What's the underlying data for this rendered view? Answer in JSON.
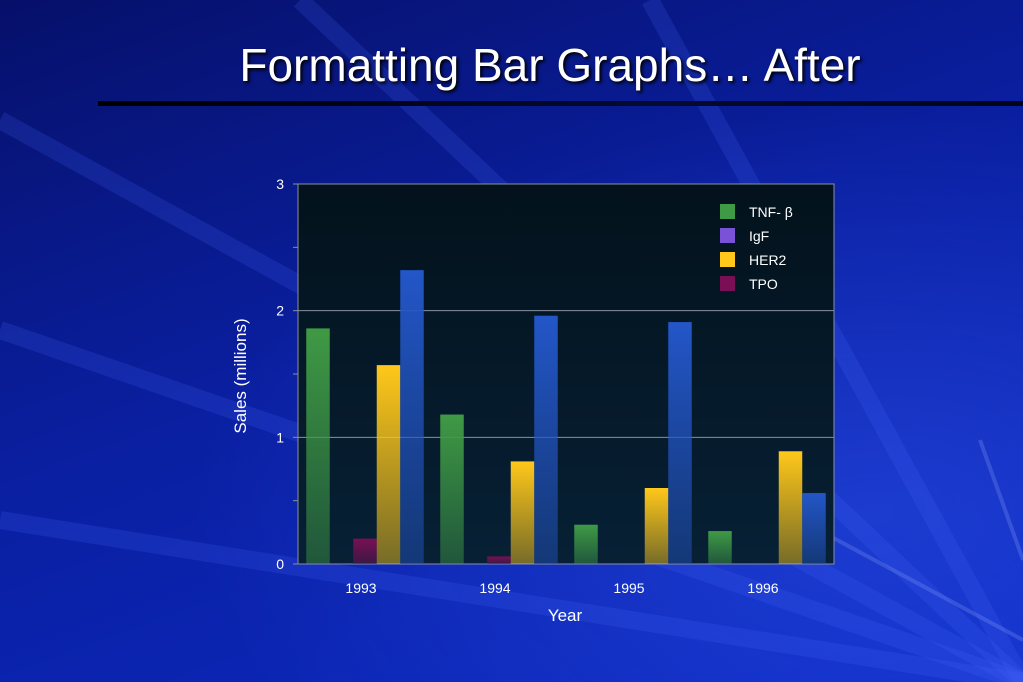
{
  "slide": {
    "title": "Formatting Bar Graphs… After"
  },
  "chart_data": {
    "type": "bar",
    "categories": [
      "1993",
      "1994",
      "1995",
      "1996"
    ],
    "series": [
      {
        "name": "TNF- β",
        "values": [
          1.86,
          1.18,
          0.31,
          0.26
        ],
        "color": "#3f9a45"
      },
      {
        "name": "IgF",
        "values": [
          0,
          0,
          0,
          0
        ],
        "color": "#7a52d8"
      },
      {
        "name": "TPO",
        "values": [
          0.2,
          0.06,
          0,
          0
        ],
        "color": "#7a0f55"
      },
      {
        "name": "HER2",
        "values": [
          1.57,
          0.81,
          0.6,
          0.89
        ],
        "color": "#ffc81a"
      },
      {
        "name": "",
        "values": [
          2.32,
          1.96,
          1.91,
          0.56
        ],
        "color": "#2356c8"
      }
    ],
    "legend_order": [
      "TNF- β",
      "IgF",
      "HER2",
      "TPO"
    ],
    "xlabel": "Year",
    "ylabel": "Sales (millions)",
    "ylim": [
      0,
      3
    ],
    "yticks": [
      "0",
      "1",
      "2",
      "3"
    ],
    "grid": true,
    "legend_position": "top-right"
  }
}
